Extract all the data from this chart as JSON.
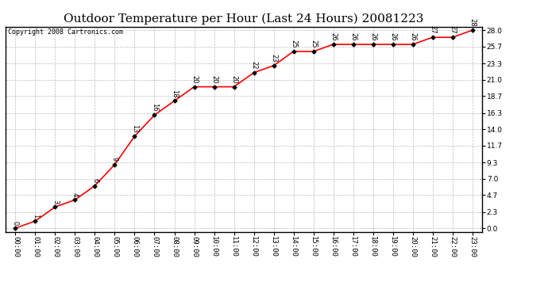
{
  "title": "Outdoor Temperature per Hour (Last 24 Hours) 20081223",
  "copyright": "Copyright 2008 Cartronics.com",
  "hours": [
    "00:00",
    "01:00",
    "02:00",
    "03:00",
    "04:00",
    "05:00",
    "06:00",
    "07:00",
    "08:00",
    "09:00",
    "10:00",
    "11:00",
    "12:00",
    "13:00",
    "14:00",
    "15:00",
    "16:00",
    "17:00",
    "18:00",
    "19:00",
    "20:00",
    "21:00",
    "22:00",
    "23:00"
  ],
  "temps": [
    0,
    1,
    3,
    4,
    6,
    9,
    13,
    16,
    18,
    20,
    20,
    20,
    22,
    23,
    25,
    25,
    26,
    26,
    26,
    26,
    26,
    27,
    27,
    28
  ],
  "yticks": [
    0.0,
    2.3,
    4.7,
    7.0,
    9.3,
    11.7,
    14.0,
    16.3,
    18.7,
    21.0,
    23.3,
    25.7,
    28.0
  ],
  "line_color": "red",
  "marker_color": "black",
  "bg_color": "white",
  "grid_color": "#bbbbbb",
  "title_fontsize": 11,
  "label_fontsize": 6.5,
  "copyright_fontsize": 6,
  "annot_fontsize": 6
}
